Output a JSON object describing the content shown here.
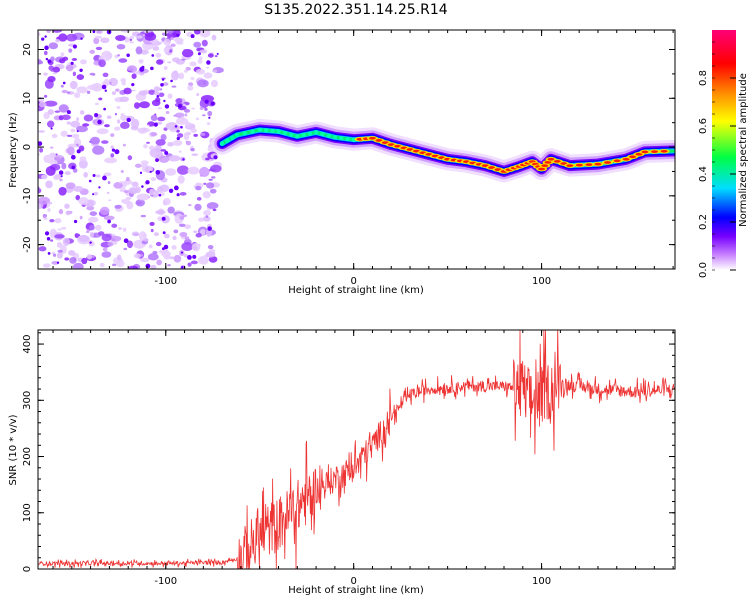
{
  "title": "S135.2022.351.14.25.R14",
  "chart_data": [
    {
      "type": "heatmap",
      "xlabel": "Height of straight line (km)",
      "ylabel": "Frequency (Hz)",
      "xlim": [
        -168,
        171
      ],
      "ylim": [
        -25,
        24
      ],
      "x_ticks": [
        -100,
        0,
        100
      ],
      "y_ticks": [
        -20,
        -10,
        0,
        10,
        20
      ],
      "colorbar": {
        "label": "Normalized spectral amplitude",
        "range": [
          0,
          1
        ],
        "ticks": [
          0.0,
          0.2,
          0.4,
          0.6,
          0.8
        ],
        "colormap": [
          "#ffffff",
          "#cc88ff",
          "#7700ff",
          "#0000ff",
          "#00ddff",
          "#00ff44",
          "#ffff00",
          "#ff8800",
          "#ff0000",
          "#ff0077"
        ]
      },
      "noise_region_x": [
        -168,
        -72
      ],
      "ridge": [
        {
          "x": -70,
          "y": 0.7
        },
        {
          "x": -62,
          "y": 2.5
        },
        {
          "x": -50,
          "y": 3.5
        },
        {
          "x": -40,
          "y": 3.2
        },
        {
          "x": -30,
          "y": 2.2
        },
        {
          "x": -20,
          "y": 3.0
        },
        {
          "x": -10,
          "y": 2.0
        },
        {
          "x": 0,
          "y": 1.5
        },
        {
          "x": 10,
          "y": 1.8
        },
        {
          "x": 20,
          "y": 0.5
        },
        {
          "x": 30,
          "y": -0.5
        },
        {
          "x": 40,
          "y": -1.5
        },
        {
          "x": 50,
          "y": -2.5
        },
        {
          "x": 60,
          "y": -3.0
        },
        {
          "x": 70,
          "y": -3.8
        },
        {
          "x": 80,
          "y": -5.0
        },
        {
          "x": 88,
          "y": -4.0
        },
        {
          "x": 95,
          "y": -3.0
        },
        {
          "x": 100,
          "y": -4.5
        },
        {
          "x": 105,
          "y": -2.5
        },
        {
          "x": 115,
          "y": -3.8
        },
        {
          "x": 130,
          "y": -3.5
        },
        {
          "x": 145,
          "y": -2.5
        },
        {
          "x": 155,
          "y": -1.0
        },
        {
          "x": 170,
          "y": -0.8
        }
      ]
    },
    {
      "type": "line",
      "xlabel": "Height of straight line (km)",
      "ylabel": "SNR (10 * v/v)",
      "xlim": [
        -168,
        171
      ],
      "ylim": [
        0,
        425
      ],
      "x_ticks": [
        -100,
        0,
        100
      ],
      "y_ticks": [
        0,
        100,
        200,
        300,
        400
      ],
      "series": [
        {
          "color": "#ee3333",
          "points": [
            {
              "x": -168,
              "y": 10
            },
            {
              "x": -100,
              "y": 10
            },
            {
              "x": -70,
              "y": 12
            },
            {
              "x": -60,
              "y": 20
            },
            {
              "x": -50,
              "y": 60
            },
            {
              "x": -40,
              "y": 80
            },
            {
              "x": -30,
              "y": 110
            },
            {
              "x": -20,
              "y": 140
            },
            {
              "x": -10,
              "y": 160
            },
            {
              "x": 0,
              "y": 180
            },
            {
              "x": 10,
              "y": 220
            },
            {
              "x": 20,
              "y": 270
            },
            {
              "x": 30,
              "y": 310
            },
            {
              "x": 40,
              "y": 320
            },
            {
              "x": 60,
              "y": 325
            },
            {
              "x": 80,
              "y": 325
            },
            {
              "x": 90,
              "y": 320
            },
            {
              "x": 95,
              "y": 300
            },
            {
              "x": 100,
              "y": 310
            },
            {
              "x": 110,
              "y": 330
            },
            {
              "x": 130,
              "y": 320
            },
            {
              "x": 150,
              "y": 315
            },
            {
              "x": 171,
              "y": 320
            }
          ]
        }
      ]
    }
  ]
}
